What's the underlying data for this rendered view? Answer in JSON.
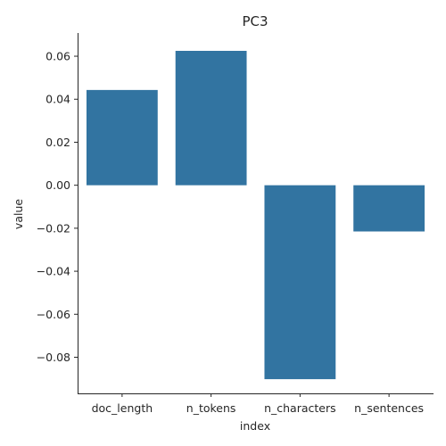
{
  "chart_data": {
    "type": "bar",
    "title": "PC3",
    "xlabel": "index",
    "ylabel": "value",
    "categories": [
      "doc_length",
      "n_tokens",
      "n_characters",
      "n_sentences"
    ],
    "values": [
      0.0443,
      0.0625,
      -0.0902,
      -0.0215
    ],
    "ylim": [
      -0.0968,
      0.0708
    ],
    "yticks": [
      -0.08,
      -0.06,
      -0.04,
      -0.02,
      0.0,
      0.02,
      0.04,
      0.06
    ],
    "ytick_labels": [
      "−0.08",
      "−0.06",
      "−0.04",
      "−0.02",
      "0.00",
      "0.02",
      "0.04",
      "0.06"
    ],
    "bar_color": "#3274a1",
    "grid": false,
    "legend": "none"
  }
}
